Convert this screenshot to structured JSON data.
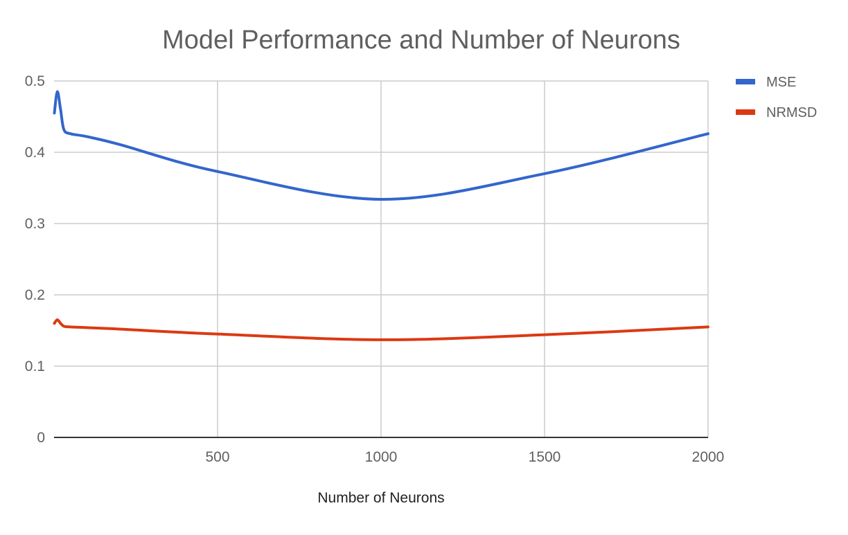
{
  "chart_data": {
    "type": "line",
    "title": "Model Performance and Number of Neurons",
    "xlabel": "Number of Neurons",
    "ylabel": "",
    "xlim": [
      0,
      2000
    ],
    "ylim": [
      0,
      0.5
    ],
    "x_ticks": [
      {
        "value": 500,
        "label": "500"
      },
      {
        "value": 1000,
        "label": "1000"
      },
      {
        "value": 1500,
        "label": "1500"
      },
      {
        "value": 2000,
        "label": "2000"
      }
    ],
    "y_ticks": [
      {
        "value": 0,
        "label": "0"
      },
      {
        "value": 0.1,
        "label": "0.1"
      },
      {
        "value": 0.2,
        "label": "0.2"
      },
      {
        "value": 0.3,
        "label": "0.3"
      },
      {
        "value": 0.4,
        "label": "0.4"
      },
      {
        "value": 0.5,
        "label": "0.5"
      }
    ],
    "grid": true,
    "legend_position": "right",
    "series": [
      {
        "name": "MSE",
        "color": "#3366cc",
        "x": [
          1,
          10,
          20,
          30,
          50,
          100,
          200,
          500,
          1000,
          1500,
          2000
        ],
        "y": [
          0.455,
          0.485,
          0.46,
          0.432,
          0.426,
          0.422,
          0.411,
          0.373,
          0.334,
          0.37,
          0.426
        ]
      },
      {
        "name": "NRMSD",
        "color": "#dc3912",
        "x": [
          1,
          10,
          20,
          30,
          50,
          100,
          200,
          500,
          1000,
          1500,
          2000
        ],
        "y": [
          0.16,
          0.165,
          0.16,
          0.156,
          0.155,
          0.154,
          0.152,
          0.145,
          0.137,
          0.144,
          0.155
        ]
      }
    ]
  }
}
